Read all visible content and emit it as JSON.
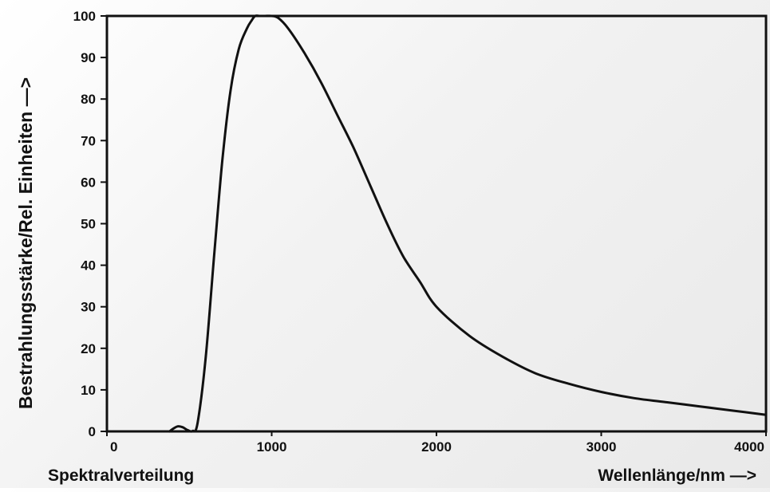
{
  "chart_data": {
    "type": "line",
    "title": "",
    "caption": "Spektralverteilung",
    "xlabel": "Wellenlänge/nm —>",
    "ylabel": "Bestrahlungsstärke/Rel. Einheiten —>",
    "xlim": [
      0,
      4000
    ],
    "ylim": [
      0,
      100
    ],
    "xticks": [
      0,
      1000,
      2000,
      3000,
      4000
    ],
    "yticks": [
      0,
      10,
      20,
      30,
      40,
      50,
      60,
      70,
      80,
      90,
      100
    ],
    "grid": false,
    "legend": "none",
    "line_color": "#111111",
    "series": [
      {
        "x": [
          380,
          400,
          430,
          460,
          490,
          520,
          550,
          600,
          650,
          700,
          750,
          800,
          850,
          880,
          900,
          930,
          960,
          1000,
          1040,
          1100,
          1200,
          1300,
          1400,
          1500,
          1600,
          1700,
          1800,
          1900,
          2000,
          2200,
          2400,
          2600,
          2800,
          3000,
          3200,
          3400,
          3600,
          3800,
          4000
        ],
        "y": [
          0,
          0.6,
          1.2,
          1.0,
          0.3,
          0.1,
          2,
          18,
          42,
          65,
          82,
          92,
          97,
          99,
          100,
          100,
          100,
          100,
          99.5,
          97,
          91,
          84,
          76,
          68,
          59,
          50,
          42,
          36,
          30,
          23,
          18,
          14,
          11.5,
          9.5,
          8,
          7,
          6,
          5,
          4
        ]
      }
    ]
  }
}
